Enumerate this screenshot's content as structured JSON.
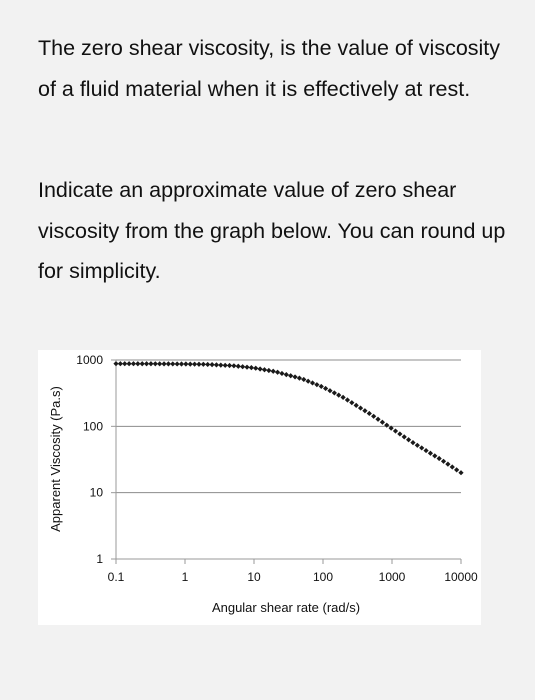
{
  "question": {
    "paragraph1": "The zero shear viscosity, is the value of viscosity of a fluid material when it is effectively at rest.",
    "paragraph2": "Indicate an approximate value of zero shear viscosity from the graph below. You can round up for simplicity."
  },
  "chart_data": {
    "type": "scatter",
    "xlabel": "Angular shear rate (rad/s)",
    "ylabel": "Apparent Viscosity (Pa.s)",
    "xscale": "log",
    "yscale": "log",
    "xlim": [
      0.1,
      10000
    ],
    "ylim": [
      1,
      1000
    ],
    "xticks": [
      "0.1",
      "1",
      "10",
      "100",
      "1000",
      "10000"
    ],
    "yticks": [
      "1",
      "10",
      "100",
      "1000"
    ],
    "grid": "horizontal",
    "marker_color": "#1a1a1a",
    "series": [
      {
        "x": [
          0.1,
          0.2,
          0.5,
          1,
          2,
          5,
          10,
          20,
          50,
          100,
          200,
          500,
          1000,
          2000,
          5000,
          10000
        ],
        "values": [
          880,
          879,
          875,
          870,
          860,
          820,
          760,
          670,
          520,
          390,
          270,
          150,
          92,
          57,
          32,
          20
        ]
      }
    ]
  }
}
